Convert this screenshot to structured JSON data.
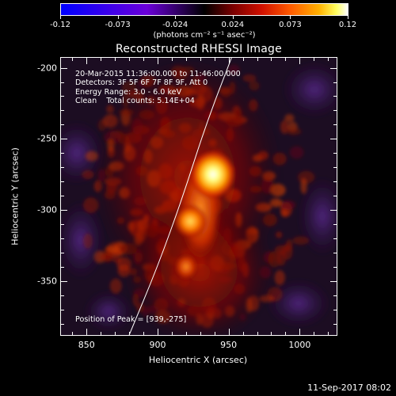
{
  "colorbar": {
    "tick_labels": [
      "-0.12",
      "-0.073",
      "-0.024",
      "0.024",
      "0.073",
      "0.12"
    ],
    "unit": "(photons cm⁻² s⁻¹ asec⁻²)",
    "min": -0.12,
    "max": 0.12
  },
  "title": "Reconstructed RHESSI Image",
  "info": {
    "line1": "20-Mar-2015 11:36:00.000 to 11:46:00.000",
    "line2": "Detectors: 3F 5F 6F 7F 8F 9F, Att 0",
    "line3": "Energy Range: 3.0 - 6.0 keV",
    "line4": "Clean    Total counts: 5.14E+04",
    "peak": "Position of Peak = [939,-275]"
  },
  "axes": {
    "xlabel": "Heliocentric X (arcsec)",
    "ylabel": "Heliocentric Y (arcsec)",
    "xlim": [
      832,
      1026
    ],
    "ylim": [
      -388,
      -193
    ],
    "xticks": [
      "850",
      "900",
      "950",
      "1000"
    ],
    "yticks": [
      "-200",
      "-250",
      "-300",
      "-350"
    ]
  },
  "image_features": {
    "peak_position": [
      939,
      -275
    ],
    "secondary_sources": [
      [
        923,
        -308
      ],
      [
        920,
        -340
      ]
    ],
    "limb_curve": [
      [
        880,
        -388
      ],
      [
        900,
        -340
      ],
      [
        918,
        -290
      ],
      [
        934,
        -240
      ],
      [
        952,
        -193
      ]
    ],
    "limb_color": "#ffffff"
  },
  "footer": {
    "date": "11-Sep-2017 08:02"
  }
}
